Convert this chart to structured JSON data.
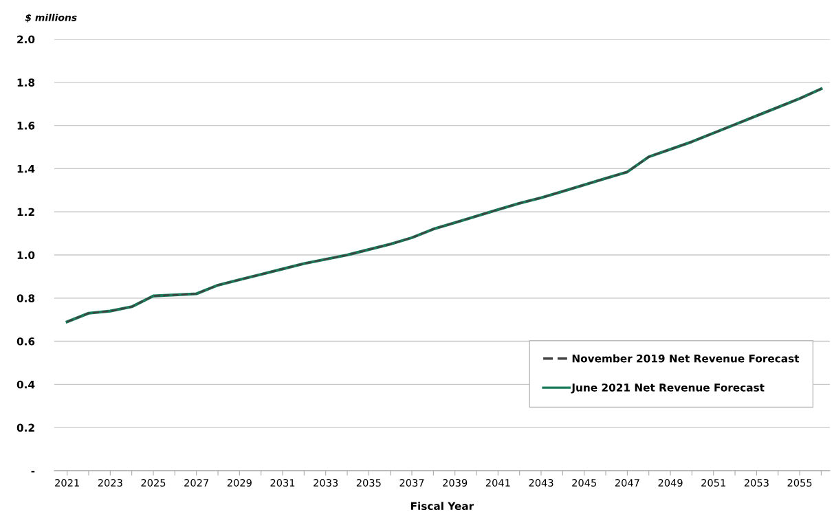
{
  "chart_data": {
    "type": "line",
    "xlabel": "Fiscal Year",
    "ylabel": "$ millions",
    "categories": [
      "2021",
      null,
      "2023",
      null,
      "2025",
      null,
      "2027",
      null,
      "2029",
      null,
      "2031",
      null,
      "2033",
      null,
      "2035",
      null,
      "2037",
      null,
      "2039",
      null,
      "2041",
      null,
      "2043",
      null,
      "2045",
      null,
      "2047",
      null,
      "2049",
      null,
      "2051",
      null,
      "2053",
      null,
      "2055",
      null
    ],
    "series": [
      {
        "name": "November 2019 Net Revenue Forecast",
        "color": "#404040",
        "line_style": "dashed",
        "values": [
          0.69,
          0.73,
          0.74,
          0.76,
          0.81,
          0.815,
          0.82,
          0.86,
          0.885,
          0.91,
          0.935,
          0.96,
          0.98,
          1.0,
          1.025,
          1.05,
          1.08,
          1.12,
          1.15,
          1.18,
          1.21,
          1.24,
          1.265,
          1.295,
          1.325,
          1.355,
          1.385,
          1.455,
          1.49,
          1.525,
          1.565,
          1.605,
          1.645,
          1.685,
          1.725,
          1.77
        ]
      },
      {
        "name": "June 2021 Net Revenue Forecast",
        "color": "#1a7a5a",
        "line_style": "solid",
        "values": [
          0.69,
          0.73,
          0.74,
          0.76,
          0.81,
          0.815,
          0.82,
          0.86,
          0.885,
          0.91,
          0.935,
          0.96,
          0.98,
          1.0,
          1.025,
          1.05,
          1.08,
          1.12,
          1.15,
          1.18,
          1.21,
          1.24,
          1.265,
          1.295,
          1.325,
          1.355,
          1.385,
          1.455,
          1.49,
          1.525,
          1.565,
          1.605,
          1.645,
          1.685,
          1.725,
          1.77
        ]
      }
    ],
    "ylim": [
      0,
      2.0
    ],
    "yticks": [
      {
        "value": 0,
        "label": "-"
      },
      {
        "value": 0.2,
        "label": "0.2"
      },
      {
        "value": 0.4,
        "label": "0.4"
      },
      {
        "value": 0.6,
        "label": "0.6"
      },
      {
        "value": 0.8,
        "label": "0.8"
      },
      {
        "value": 1.0,
        "label": "1.0"
      },
      {
        "value": 1.2,
        "label": "1.2"
      },
      {
        "value": 1.4,
        "label": "1.4"
      },
      {
        "value": 1.6,
        "label": "1.6"
      },
      {
        "value": 1.8,
        "label": "1.8"
      },
      {
        "value": 2.0,
        "label": "2.0"
      }
    ],
    "grid": "y",
    "legend": "bottom right",
    "marker": "none"
  }
}
